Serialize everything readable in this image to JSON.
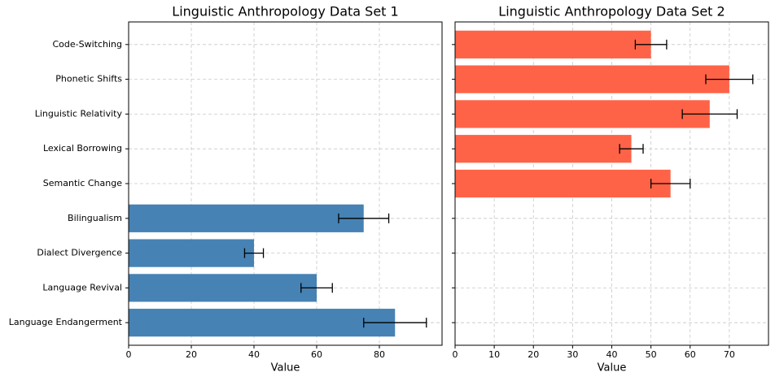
{
  "chart_data": [
    {
      "type": "bar",
      "orientation": "horizontal",
      "title": "Linguistic Anthropology Data Set 1",
      "xlabel": "Value",
      "categories": [
        "Language Endangerment",
        "Language Revival",
        "Dialect Divergence",
        "Bilingualism",
        "Semantic Change",
        "Lexical Borrowing",
        "Linguistic Relativity",
        "Phonetic Shifts",
        "Code-Switching"
      ],
      "values": [
        85,
        60,
        40,
        75,
        null,
        null,
        null,
        null,
        null
      ],
      "errors": [
        10,
        5,
        3,
        8,
        null,
        null,
        null,
        null,
        null
      ],
      "color": "#4682b4",
      "xlim": [
        0,
        100
      ],
      "xticks": [
        0,
        20,
        40,
        60,
        80
      ],
      "grid": true
    },
    {
      "type": "bar",
      "orientation": "horizontal",
      "title": "Linguistic Anthropology Data Set 2",
      "xlabel": "Value",
      "values": [
        null,
        null,
        null,
        null,
        55,
        45,
        65,
        70,
        50
      ],
      "errors": [
        null,
        null,
        null,
        null,
        5,
        3,
        7,
        6,
        4
      ],
      "color": "#ff6347",
      "xlim": [
        0,
        80
      ],
      "xticks": [
        0,
        10,
        20,
        30,
        40,
        50,
        60,
        70
      ],
      "grid": true,
      "sharey": true
    }
  ]
}
